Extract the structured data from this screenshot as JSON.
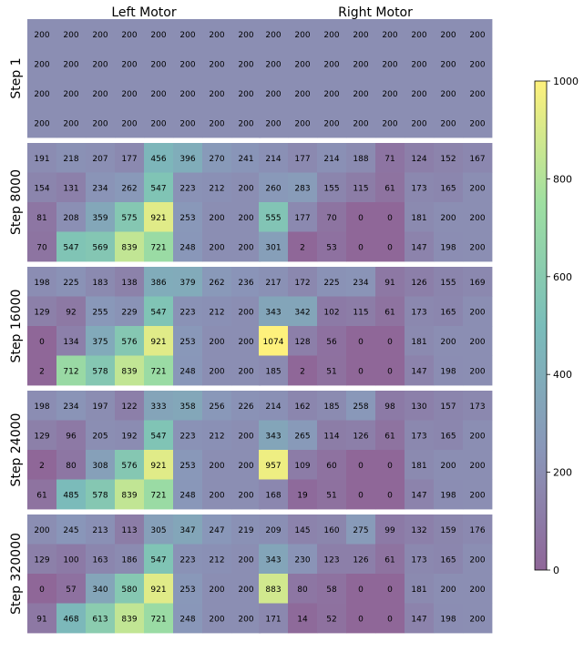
{
  "chart_data": {
    "type": "heatmap",
    "colorbar": {
      "min": 0,
      "max": 1000,
      "ticks": [
        "0",
        "200",
        "400",
        "600",
        "800",
        "1000"
      ],
      "colormap": "viridis",
      "alpha": 0.6
    },
    "columns": [
      {
        "title": "Left Motor"
      },
      {
        "title": "Right Motor"
      }
    ],
    "rows": [
      {
        "label": "Step 1",
        "left": [
          [
            200,
            200,
            200,
            200,
            200,
            200,
            200,
            200
          ],
          [
            200,
            200,
            200,
            200,
            200,
            200,
            200,
            200
          ],
          [
            200,
            200,
            200,
            200,
            200,
            200,
            200,
            200
          ],
          [
            200,
            200,
            200,
            200,
            200,
            200,
            200,
            200
          ]
        ],
        "right": [
          [
            200,
            200,
            200,
            200,
            200,
            200,
            200,
            200
          ],
          [
            200,
            200,
            200,
            200,
            200,
            200,
            200,
            200
          ],
          [
            200,
            200,
            200,
            200,
            200,
            200,
            200,
            200
          ],
          [
            200,
            200,
            200,
            200,
            200,
            200,
            200,
            200
          ]
        ]
      },
      {
        "label": "Step 8000",
        "left": [
          [
            191,
            218,
            207,
            177,
            456,
            396,
            270,
            241
          ],
          [
            154,
            131,
            234,
            262,
            547,
            223,
            212,
            200
          ],
          [
            81,
            208,
            359,
            575,
            921,
            253,
            200,
            200
          ],
          [
            70,
            547,
            569,
            839,
            721,
            248,
            200,
            200
          ]
        ],
        "right": [
          [
            214,
            177,
            214,
            188,
            71,
            124,
            152,
            167
          ],
          [
            260,
            283,
            155,
            115,
            61,
            173,
            165,
            200
          ],
          [
            555,
            177,
            70,
            0,
            0,
            181,
            200,
            200
          ],
          [
            301,
            2,
            53,
            0,
            0,
            147,
            198,
            200
          ]
        ]
      },
      {
        "label": "Step 16000",
        "left": [
          [
            198,
            225,
            183,
            138,
            386,
            379,
            262,
            236
          ],
          [
            129,
            92,
            255,
            229,
            547,
            223,
            212,
            200
          ],
          [
            0,
            134,
            375,
            576,
            921,
            253,
            200,
            200
          ],
          [
            2,
            712,
            578,
            839,
            721,
            248,
            200,
            200
          ]
        ],
        "right": [
          [
            217,
            172,
            225,
            234,
            91,
            126,
            155,
            169
          ],
          [
            343,
            342,
            102,
            115,
            61,
            173,
            165,
            200
          ],
          [
            1074,
            128,
            56,
            0,
            0,
            181,
            200,
            200
          ],
          [
            185,
            2,
            51,
            0,
            0,
            147,
            198,
            200
          ]
        ]
      },
      {
        "label": "Step 24000",
        "left": [
          [
            198,
            234,
            197,
            122,
            333,
            358,
            256,
            226
          ],
          [
            129,
            96,
            205,
            192,
            547,
            223,
            212,
            200
          ],
          [
            2,
            80,
            308,
            576,
            921,
            253,
            200,
            200
          ],
          [
            61,
            485,
            578,
            839,
            721,
            248,
            200,
            200
          ]
        ],
        "right": [
          [
            214,
            162,
            185,
            258,
            98,
            130,
            157,
            173
          ],
          [
            343,
            265,
            114,
            126,
            61,
            173,
            165,
            200
          ],
          [
            957,
            109,
            60,
            0,
            0,
            181,
            200,
            200
          ],
          [
            168,
            19,
            51,
            0,
            0,
            147,
            198,
            200
          ]
        ]
      },
      {
        "label": "Step 320000",
        "left": [
          [
            200,
            245,
            213,
            113,
            305,
            347,
            247,
            219
          ],
          [
            129,
            100,
            163,
            186,
            547,
            223,
            212,
            200
          ],
          [
            0,
            57,
            340,
            580,
            921,
            253,
            200,
            200
          ],
          [
            91,
            468,
            613,
            839,
            721,
            248,
            200,
            200
          ]
        ],
        "right": [
          [
            209,
            145,
            160,
            275,
            99,
            132,
            159,
            176
          ],
          [
            343,
            230,
            123,
            126,
            61,
            173,
            165,
            200
          ],
          [
            883,
            80,
            58,
            0,
            0,
            181,
            200,
            200
          ],
          [
            171,
            14,
            52,
            0,
            0,
            147,
            198,
            200
          ]
        ]
      }
    ]
  }
}
